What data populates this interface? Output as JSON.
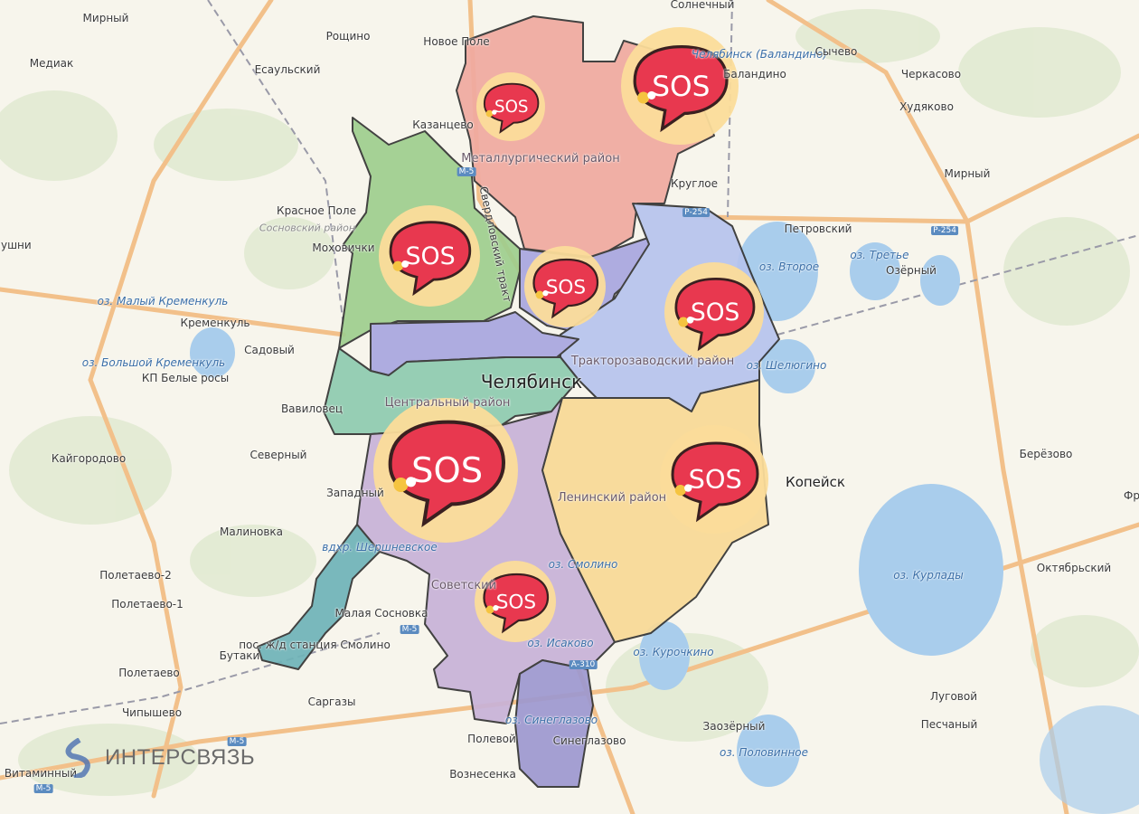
{
  "colors": {
    "metallurgical": "#f0aaa0",
    "kalininsky": "#9fce8e",
    "kurchatovsky": "#a8a6e0",
    "traktorozavodsky": "#b6c4ee",
    "central": "#8ecbb0",
    "sovetsky": "#c8b2d8",
    "leninsky": "#f9d996",
    "sos_bg": "#fbdc9a",
    "sos_bubble": "#e8384f",
    "lake": "#a9cdec",
    "road": "#f2c08a"
  },
  "sos_label": "SOS",
  "labels": {
    "mirny1": "Мирный",
    "roshchino": "Рощино",
    "novoe_pole": "Новое Поле",
    "mediak": "Медиак",
    "esaulsky": "Есаульский",
    "solnechny": "Солнечный",
    "airport": "Челябинск (Баландино)",
    "balandino": "Баландино",
    "sychevo": "Сычево",
    "cherkasovo": "Черкасово",
    "khudyakovo": "Худяково",
    "kazantsevo": "Казанцево",
    "metallurgical": "Металлургический район",
    "krugloe": "Круглое",
    "mirny2": "Мирный",
    "krasnoe_pole": "Красное Поле",
    "sosnovsky": "Сосновский район",
    "mokhovichki": "Моховички",
    "sverdlovsky_trakt": "Свердловский тракт",
    "petrovsky": "Петровский",
    "oz_vtoroe": "оз. Второе",
    "oz_trete": "оз. Третье",
    "ozerny": "Озёрный",
    "lushni": "лушни",
    "oz_maly_kremenkul": "оз. Малый Кременкуль",
    "kremenkul": "Кременкуль",
    "sadovy": "Садовый",
    "oz_bolshoy_kremenkul": "оз. Большой Кременкуль",
    "belye_rosy": "КП Белые росы",
    "traktorozavodsky": "Тракторозаводский район",
    "oz_shelyugino": "оз. Шелюгино",
    "chelyabinsk": "Челябинск",
    "central": "Центральный район",
    "vavilovets": "Вавиловец",
    "kaygorodovo": "Кайгородово",
    "severny": "Северный",
    "kopeysk": "Копейск",
    "berezovo": "Берёзово",
    "zapadny": "Западный",
    "leninsky": "Ленинский район",
    "malinovka": "Малиновка",
    "shershnevskoe": "вдхр. Шершневское",
    "oz_smolino": "оз. Смолино",
    "poletaevo2": "Полетаево-2",
    "oktyabrsky": "Октябрьский",
    "oz_kurlady": "оз. Курлады",
    "poletaevo1": "Полетаево-1",
    "sovetsky": "Советский",
    "malaya_sosnovka": "Малая Сосновка",
    "st_smolino": "пос. ж/д станция Смолино",
    "butaki": "Бутаки",
    "oz_isakovo": "оз. Исаково",
    "oz_kurochkino": "оз. Курочкино",
    "poletaevo": "Полетаево",
    "lugovoy": "Луговой",
    "sargazy": "Саргазы",
    "chipyshevo": "Чипышево",
    "peschany": "Песчаный",
    "zaozerny": "Заозёрный",
    "oz_sineglazovo": "оз. Синеглазово",
    "polevoy": "Полевой",
    "sineglazovo": "Синеглазово",
    "oz_polovinnoe": "оз. Половинное",
    "voznesenka": "Вознесенка",
    "vitaminny": "Витаминный",
    "fr": "Фр"
  },
  "shields": {
    "m5_a": "М-5",
    "p254_a": "Р-254",
    "p254_b": "Р-254",
    "a310": "А-310",
    "m5_b": "М-5",
    "m5_c": "М-5",
    "m5_d": "М-5"
  },
  "logo": {
    "text": "ИНТЕРСВЯЗЬ"
  }
}
